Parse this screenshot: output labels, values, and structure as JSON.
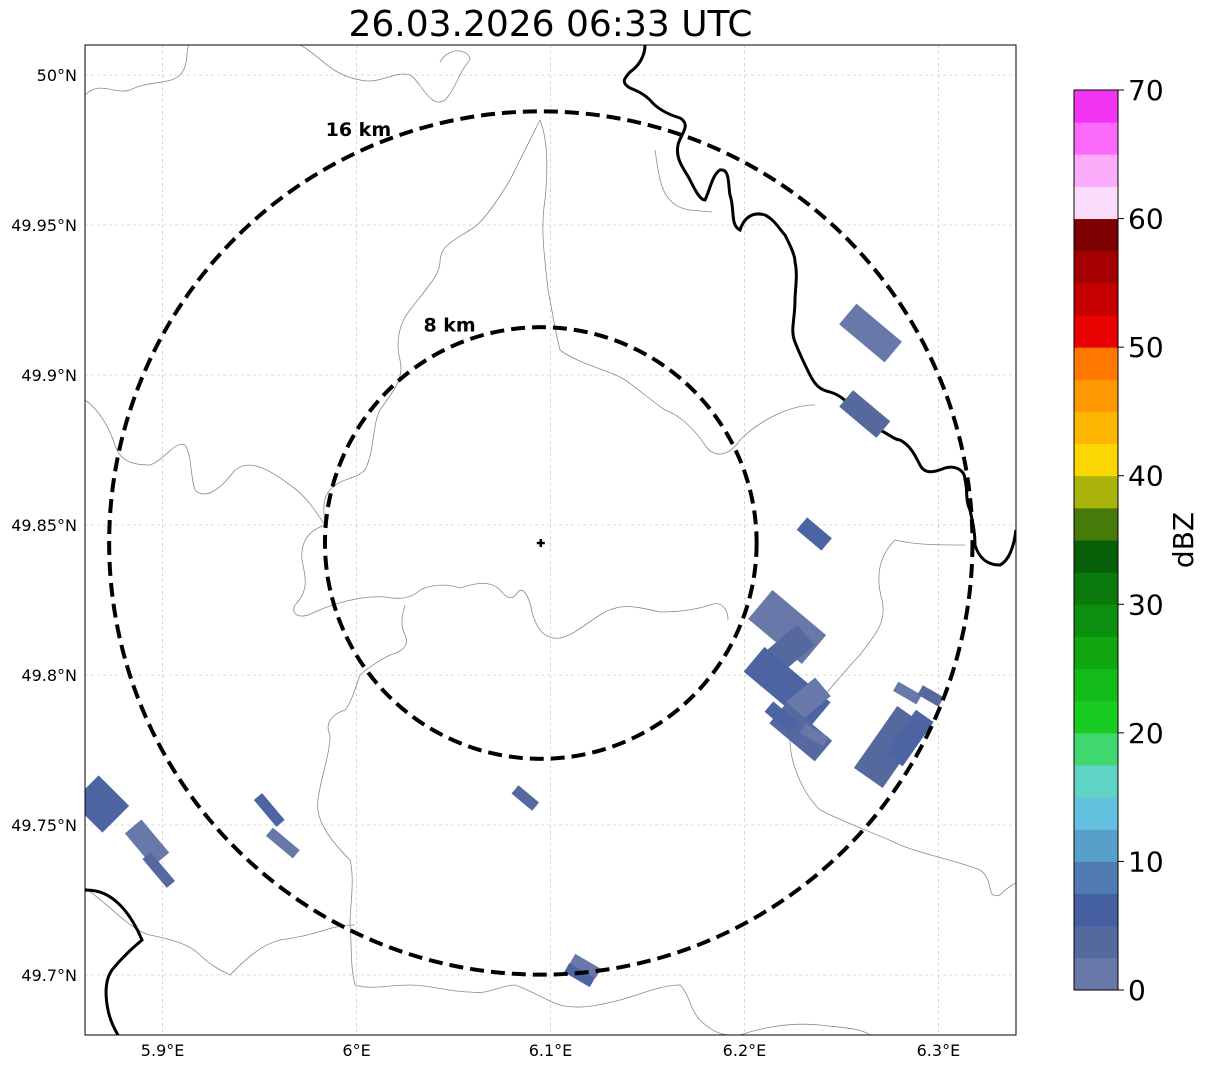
{
  "title": "26.03.2026 06:33 UTC",
  "map": {
    "lon_range": [
      5.86,
      6.34
    ],
    "lat_range": [
      49.68,
      50.01
    ],
    "x_ticks": [
      {
        "value": 5.9,
        "label": "5.9°E"
      },
      {
        "value": 6.0,
        "label": "6°E"
      },
      {
        "value": 6.1,
        "label": "6.1°E"
      },
      {
        "value": 6.2,
        "label": "6.2°E"
      },
      {
        "value": 6.3,
        "label": "6.3°E"
      }
    ],
    "y_ticks": [
      {
        "value": 49.7,
        "label": "49.7°N"
      },
      {
        "value": 49.75,
        "label": "49.75°N"
      },
      {
        "value": 49.8,
        "label": "49.8°N"
      },
      {
        "value": 49.85,
        "label": "49.85°N"
      },
      {
        "value": 49.9,
        "label": "49.9°N"
      },
      {
        "value": 49.95,
        "label": "49.95°N"
      },
      {
        "value": 50.0,
        "label": "50°N"
      }
    ],
    "grid": true,
    "radar_site": {
      "lon": 6.095,
      "lat": 49.844
    },
    "range_rings": [
      {
        "radius_km": 8,
        "label": "8 km"
      },
      {
        "radius_km": 16,
        "label": "16 km"
      }
    ],
    "echo_colors": [
      "#6878a8",
      "#56699f",
      "#4c64a2"
    ],
    "echoes": [
      {
        "lon": 6.265,
        "lat": 49.914,
        "len_km": 2.2,
        "wid_km": 1.0,
        "angle": 40,
        "dbz": 3
      },
      {
        "lon": 6.262,
        "lat": 49.887,
        "len_km": 1.8,
        "wid_km": 0.8,
        "angle": 40,
        "dbz": 3
      },
      {
        "lon": 6.236,
        "lat": 49.847,
        "len_km": 1.2,
        "wid_km": 0.6,
        "angle": 40,
        "dbz": 2
      },
      {
        "lon": 6.222,
        "lat": 49.816,
        "len_km": 2.6,
        "wid_km": 1.4,
        "angle": 40,
        "dbz": 3
      },
      {
        "lon": 6.22,
        "lat": 49.807,
        "len_km": 2.2,
        "wid_km": 1.0,
        "angle": -40,
        "dbz": 2
      },
      {
        "lon": 6.222,
        "lat": 49.796,
        "len_km": 3.2,
        "wid_km": 1.2,
        "angle": 40,
        "dbz": 3
      },
      {
        "lon": 6.233,
        "lat": 49.792,
        "len_km": 1.4,
        "wid_km": 0.9,
        "angle": -40,
        "dbz": 2
      },
      {
        "lon": 6.229,
        "lat": 49.781,
        "len_km": 2.2,
        "wid_km": 1.0,
        "angle": 40,
        "dbz": 3
      },
      {
        "lon": 6.219,
        "lat": 49.786,
        "len_km": 1.2,
        "wid_km": 0.5,
        "angle": 40,
        "dbz": 2
      },
      {
        "lon": 6.236,
        "lat": 49.78,
        "len_km": 1.0,
        "wid_km": 0.4,
        "angle": 30,
        "dbz": 2
      },
      {
        "lon": 6.275,
        "lat": 49.776,
        "len_km": 2.8,
        "wid_km": 1.3,
        "angle": -55,
        "dbz": 3
      },
      {
        "lon": 6.285,
        "lat": 49.779,
        "len_km": 2.0,
        "wid_km": 0.8,
        "angle": -55,
        "dbz": 3
      },
      {
        "lon": 6.284,
        "lat": 49.794,
        "len_km": 1.0,
        "wid_km": 0.4,
        "angle": 30,
        "dbz": 2
      },
      {
        "lon": 6.296,
        "lat": 49.793,
        "len_km": 0.9,
        "wid_km": 0.4,
        "angle": 30,
        "dbz": 2
      },
      {
        "lon": 5.868,
        "lat": 49.757,
        "len_km": 1.6,
        "wid_km": 1.4,
        "angle": 45,
        "dbz": 2
      },
      {
        "lon": 5.892,
        "lat": 49.744,
        "len_km": 1.6,
        "wid_km": 0.8,
        "angle": 50,
        "dbz": 3
      },
      {
        "lon": 5.898,
        "lat": 49.735,
        "len_km": 1.4,
        "wid_km": 0.4,
        "angle": 50,
        "dbz": 2
      },
      {
        "lon": 5.955,
        "lat": 49.755,
        "len_km": 1.3,
        "wid_km": 0.4,
        "angle": 50,
        "dbz": 2
      },
      {
        "lon": 5.962,
        "lat": 49.744,
        "len_km": 1.3,
        "wid_km": 0.4,
        "angle": 40,
        "dbz": 2
      },
      {
        "lon": 6.087,
        "lat": 49.759,
        "len_km": 1.0,
        "wid_km": 0.4,
        "angle": 40,
        "dbz": 2
      },
      {
        "lon": 6.115,
        "lat": 49.7,
        "len_km": 1.1,
        "wid_km": 0.4,
        "angle": 30,
        "dbz": 2
      },
      {
        "lon": 6.118,
        "lat": 49.703,
        "len_km": 1.1,
        "wid_km": 0.4,
        "angle": 30,
        "dbz": 2
      }
    ]
  },
  "colorbar": {
    "label": "dBZ",
    "min": 0,
    "max": 70,
    "ticks": [
      0,
      10,
      20,
      30,
      40,
      50,
      60,
      70
    ],
    "colors": [
      "#6878a8",
      "#56699f",
      "#4560a0",
      "#4f7bb0",
      "#59a0c8",
      "#63c0de",
      "#5fd3c4",
      "#3fd86e",
      "#17cc1f",
      "#12bb18",
      "#0fa612",
      "#0c8e0f",
      "#0b7a0c",
      "#075f08",
      "#467a09",
      "#aab309",
      "#fcd600",
      "#fdb600",
      "#fe9800",
      "#fe7800",
      "#e90000",
      "#c60000",
      "#a50000",
      "#7c0000",
      "#fcdcfd",
      "#fbadfb",
      "#fc6afc",
      "#f234f2"
    ]
  }
}
